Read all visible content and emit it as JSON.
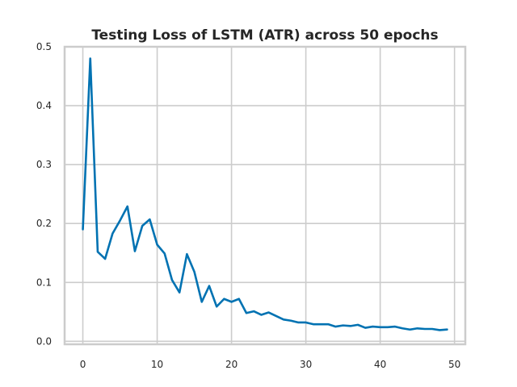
{
  "chart_data": {
    "type": "line",
    "title": "Testing Loss of LSTM (ATR) across 50 epochs",
    "xlabel": "",
    "ylabel": "",
    "xlim": [
      -2.45,
      51.45
    ],
    "ylim": [
      -0.005,
      0.5
    ],
    "xticks": [
      0,
      10,
      20,
      30,
      40,
      50
    ],
    "xtick_labels": [
      "0",
      "10",
      "20",
      "30",
      "40",
      "50"
    ],
    "yticks": [
      0.0,
      0.1,
      0.2,
      0.3,
      0.4,
      0.5
    ],
    "ytick_labels": [
      "0.0",
      "0.1",
      "0.2",
      "0.3",
      "0.4",
      "0.5"
    ],
    "grid": true,
    "legend": "none",
    "series": [
      {
        "color": "#0072b2",
        "x": [
          0,
          1,
          2,
          3,
          4,
          5,
          6,
          7,
          8,
          9,
          10,
          11,
          12,
          13,
          14,
          15,
          16,
          17,
          18,
          19,
          20,
          21,
          22,
          23,
          24,
          25,
          26,
          27,
          28,
          29,
          30,
          31,
          32,
          33,
          34,
          35,
          36,
          37,
          38,
          39,
          40,
          41,
          42,
          43,
          44,
          45,
          46,
          47,
          48,
          49
        ],
        "y": [
          0.19,
          0.48,
          0.152,
          0.14,
          0.183,
          0.205,
          0.229,
          0.153,
          0.196,
          0.207,
          0.164,
          0.149,
          0.104,
          0.083,
          0.148,
          0.118,
          0.067,
          0.094,
          0.059,
          0.072,
          0.067,
          0.072,
          0.048,
          0.051,
          0.045,
          0.049,
          0.043,
          0.037,
          0.035,
          0.032,
          0.032,
          0.029,
          0.029,
          0.029,
          0.025,
          0.027,
          0.026,
          0.028,
          0.023,
          0.025,
          0.024,
          0.024,
          0.025,
          0.022,
          0.02,
          0.022,
          0.021,
          0.021,
          0.019,
          0.02
        ]
      }
    ]
  }
}
